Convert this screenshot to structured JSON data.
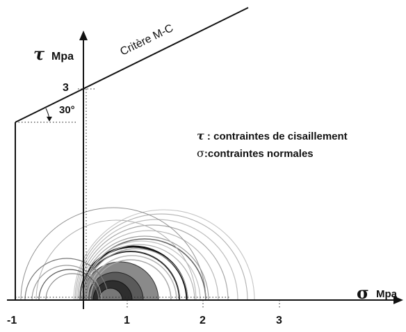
{
  "diagram": {
    "criterion_label": "Critère M-C",
    "y_axis": {
      "symbol": "τ",
      "unit": "Mpa"
    },
    "x_axis": {
      "symbol": "σ",
      "unit": "Mpa",
      "ticks": [
        "-1",
        "1",
        "2",
        "3"
      ]
    },
    "y_tick": "3",
    "angle_label": "30°",
    "legend": {
      "line1_symbol": "τ",
      "line1_text": " : contraintes de cisaillement",
      "line2_symbol": "σ",
      "line2_text": ":contraintes normales"
    }
  },
  "colors": {
    "ink": "#111111",
    "circle_light": "#a8a8a8",
    "circle_dark": "#444444",
    "fill_dark": "#555555"
  }
}
